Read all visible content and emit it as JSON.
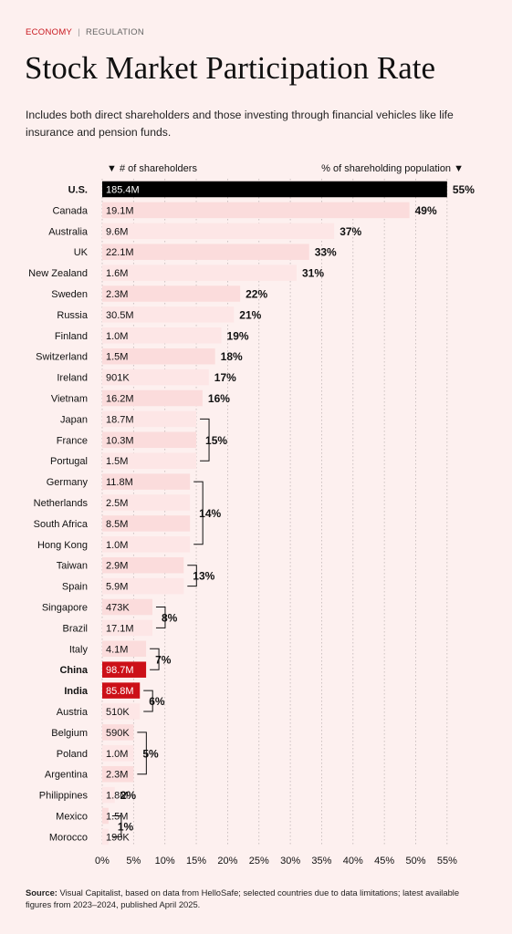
{
  "header": {
    "category_primary": "ECONOMY",
    "category_separator": "|",
    "category_secondary": "REGULATION",
    "title": "Stock Market Participation Rate",
    "subtitle": "Includes both direct shareholders and those investing through financial vehicles like life insurance and pension funds."
  },
  "footer": {
    "source_label": "Source:",
    "source_text": "Visual Capitalist, based on data from HelloSafe; selected countries due to data limitations; latest available figures from 2023–2024, published April 2025."
  },
  "colors": {
    "background": "#fdf0ef",
    "highlight_us": "#000000",
    "highlight_red": "#cc1018",
    "bar_light": "#fbdcdc",
    "bar_lighter": "#fde6e6",
    "grid": "#bfb5b5"
  },
  "chart_data": {
    "type": "bar",
    "orientation": "horizontal",
    "left_header": "▼ # of shareholders",
    "right_header": "% of shareholding population ▼",
    "xlim": [
      0,
      55
    ],
    "x_ticks": [
      "0%",
      "5%",
      "10%",
      "15%",
      "20%",
      "25%",
      "30%",
      "35%",
      "40%",
      "45%",
      "50%",
      "55%"
    ],
    "grid": true,
    "categories": [
      "U.S.",
      "Canada",
      "Australia",
      "UK",
      "New Zealand",
      "Sweden",
      "Russia",
      "Finland",
      "Switzerland",
      "Ireland",
      "Vietnam",
      "Japan",
      "France",
      "Portugal",
      "Germany",
      "Netherlands",
      "South Africa",
      "Hong Kong",
      "Taiwan",
      "Spain",
      "Singapore",
      "Brazil",
      "Italy",
      "China",
      "India",
      "Austria",
      "Belgium",
      "Poland",
      "Argentina",
      "Philippines",
      "Mexico",
      "Morocco"
    ],
    "values": [
      55,
      49,
      37,
      33,
      31,
      22,
      21,
      19,
      18,
      17,
      16,
      15,
      15,
      15,
      14,
      14,
      14,
      14,
      13,
      13,
      8,
      8,
      7,
      7,
      6,
      6,
      5,
      5,
      5,
      2,
      1,
      1
    ],
    "shareholders": [
      "185.4M",
      "19.1M",
      "9.6M",
      "22.1M",
      "1.6M",
      "2.3M",
      "30.5M",
      "1.0M",
      "1.5M",
      "901K",
      "16.2M",
      "18.7M",
      "10.3M",
      "1.5M",
      "11.8M",
      "2.5M",
      "8.5M",
      "1.0M",
      "2.9M",
      "5.9M",
      "473K",
      "17.1M",
      "4.1M",
      "98.7M",
      "85.8M",
      "510K",
      "590K",
      "1.0M",
      "2.3M",
      "1.8M",
      "1.5M",
      "190K"
    ],
    "highlighted": [
      "U.S.",
      "China",
      "India"
    ],
    "percent_labels": [
      {
        "text": "55%",
        "rows": [
          0,
          0
        ]
      },
      {
        "text": "49%",
        "rows": [
          1,
          1
        ]
      },
      {
        "text": "37%",
        "rows": [
          2,
          2
        ]
      },
      {
        "text": "33%",
        "rows": [
          3,
          3
        ]
      },
      {
        "text": "31%",
        "rows": [
          4,
          4
        ]
      },
      {
        "text": "22%",
        "rows": [
          5,
          5
        ]
      },
      {
        "text": "21%",
        "rows": [
          6,
          6
        ]
      },
      {
        "text": "19%",
        "rows": [
          7,
          7
        ]
      },
      {
        "text": "18%",
        "rows": [
          8,
          8
        ]
      },
      {
        "text": "17%",
        "rows": [
          9,
          9
        ]
      },
      {
        "text": "16%",
        "rows": [
          10,
          10
        ]
      },
      {
        "text": "15%",
        "rows": [
          11,
          13
        ]
      },
      {
        "text": "14%",
        "rows": [
          14,
          17
        ]
      },
      {
        "text": "13%",
        "rows": [
          18,
          19
        ]
      },
      {
        "text": "8%",
        "rows": [
          20,
          21
        ]
      },
      {
        "text": "7%",
        "rows": [
          22,
          23
        ]
      },
      {
        "text": "6%",
        "rows": [
          24,
          25
        ]
      },
      {
        "text": "5%",
        "rows": [
          26,
          28
        ]
      },
      {
        "text": "2%",
        "rows": [
          29,
          29
        ]
      },
      {
        "text": "1%",
        "rows": [
          30,
          31
        ]
      }
    ]
  }
}
